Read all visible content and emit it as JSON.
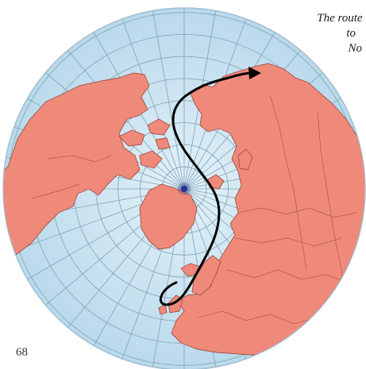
{
  "caption": {
    "line1": "The route c",
    "line2": "to",
    "line3": "No"
  },
  "page_number": "68",
  "colors": {
    "ocean": "#cfe6f3",
    "land": "#ef8a7a",
    "land_border": "#a34f45",
    "graticule": "#7ea3b8",
    "route": "#000000",
    "pole": "#2a2f8f"
  },
  "map": {
    "projection": "north-polar azimuthal",
    "route_arrow": true
  }
}
